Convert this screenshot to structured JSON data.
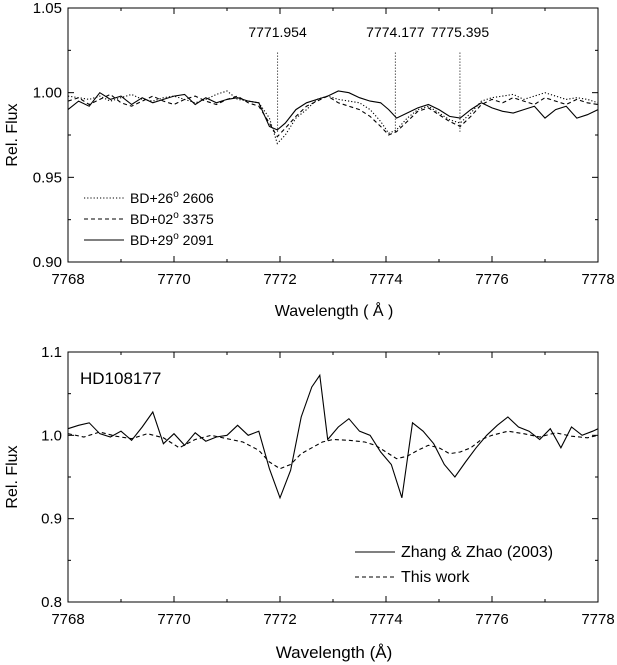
{
  "chart_data": [
    {
      "type": "line",
      "xlabel": "Wavelength ( Å )",
      "ylabel": "Rel. Flux",
      "xlim": [
        7768,
        7778
      ],
      "ylim": [
        0.9,
        1.05
      ],
      "xticks": [
        7768,
        7770,
        7772,
        7774,
        7776,
        7778
      ],
      "yticks": [
        0.9,
        0.95,
        1.0,
        1.05
      ],
      "tick_labels_y": [
        "0.90",
        "0.95",
        "1.00",
        "1.05"
      ],
      "grid": false,
      "legend_position": "bottom-left",
      "annotations": [
        {
          "x": 7771.954,
          "label": "7771.954"
        },
        {
          "x": 7774.177,
          "label": "7774.177"
        },
        {
          "x": 7775.395,
          "label": "7775.395"
        }
      ],
      "line_marker_range": [
        0.977,
        1.024
      ],
      "series": [
        {
          "legend": "BD+26",
          "legend_sup": "o",
          "legend_tail": " 2606",
          "style": "dotted",
          "x": [
            7768.0,
            7768.2,
            7768.4,
            7768.6,
            7768.8,
            7769.0,
            7769.2,
            7769.4,
            7769.6,
            7769.8,
            7770.0,
            7770.2,
            7770.4,
            7770.6,
            7770.8,
            7771.0,
            7771.2,
            7771.4,
            7771.6,
            7771.8,
            7771.95,
            7772.1,
            7772.3,
            7772.5,
            7772.7,
            7772.9,
            7773.1,
            7773.3,
            7773.5,
            7773.7,
            7773.9,
            7774.05,
            7774.2,
            7774.4,
            7774.6,
            7774.8,
            7775.0,
            7775.2,
            7775.4,
            7775.6,
            7775.8,
            7776.0,
            7776.2,
            7776.4,
            7776.6,
            7776.8,
            7777.0,
            7777.2,
            7777.4,
            7777.6,
            7777.8,
            7778.0
          ],
          "values": [
            0.998,
            0.997,
            0.996,
            0.998,
            0.995,
            0.997,
            0.999,
            0.996,
            0.995,
            0.997,
            0.998,
            0.996,
            0.994,
            0.996,
            0.999,
            1.001,
            0.996,
            0.995,
            0.994,
            0.985,
            0.97,
            0.975,
            0.985,
            0.99,
            0.996,
            0.998,
            0.996,
            0.995,
            0.994,
            0.99,
            0.983,
            0.976,
            0.978,
            0.985,
            0.99,
            0.992,
            0.988,
            0.984,
            0.982,
            0.988,
            0.995,
            0.997,
            0.998,
            0.999,
            0.996,
            0.998,
            1.0,
            0.998,
            0.996,
            0.997,
            0.996,
            0.994
          ]
        },
        {
          "legend": "BD+02",
          "legend_sup": "o",
          "legend_tail": " 3375",
          "style": "dashed",
          "x": [
            7768.0,
            7768.2,
            7768.4,
            7768.6,
            7768.8,
            7769.0,
            7769.2,
            7769.4,
            7769.6,
            7769.8,
            7770.0,
            7770.2,
            7770.4,
            7770.6,
            7770.8,
            7771.0,
            7771.2,
            7771.4,
            7771.6,
            7771.8,
            7771.95,
            7772.1,
            7772.3,
            7772.5,
            7772.7,
            7772.9,
            7773.1,
            7773.3,
            7773.5,
            7773.7,
            7773.9,
            7774.05,
            7774.2,
            7774.4,
            7774.6,
            7774.8,
            7775.0,
            7775.2,
            7775.4,
            7775.6,
            7775.8,
            7776.0,
            7776.2,
            7776.4,
            7776.6,
            7776.8,
            7777.0,
            7777.2,
            7777.4,
            7777.6,
            7777.8,
            7778.0
          ],
          "values": [
            0.995,
            0.997,
            0.993,
            0.996,
            0.999,
            0.994,
            0.992,
            0.995,
            0.998,
            0.995,
            0.993,
            0.996,
            0.998,
            0.995,
            0.993,
            0.996,
            0.998,
            0.994,
            0.992,
            0.982,
            0.974,
            0.979,
            0.986,
            0.992,
            0.995,
            0.998,
            0.994,
            0.992,
            0.99,
            0.986,
            0.98,
            0.975,
            0.977,
            0.983,
            0.989,
            0.991,
            0.987,
            0.983,
            0.98,
            0.986,
            0.993,
            0.996,
            0.994,
            0.997,
            0.995,
            0.993,
            0.997,
            0.995,
            0.993,
            0.996,
            0.994,
            0.993
          ]
        },
        {
          "legend": "BD+29",
          "legend_sup": "o",
          "legend_tail": " 2091",
          "style": "solid",
          "x": [
            7768.0,
            7768.2,
            7768.4,
            7768.6,
            7768.8,
            7769.0,
            7769.2,
            7769.4,
            7769.6,
            7769.8,
            7770.0,
            7770.2,
            7770.4,
            7770.6,
            7770.8,
            7771.0,
            7771.2,
            7771.4,
            7771.6,
            7771.8,
            7771.95,
            7772.1,
            7772.3,
            7772.5,
            7772.7,
            7772.9,
            7773.1,
            7773.3,
            7773.5,
            7773.7,
            7773.9,
            7774.05,
            7774.2,
            7774.4,
            7774.6,
            7774.8,
            7775.0,
            7775.2,
            7775.4,
            7775.6,
            7775.8,
            7776.0,
            7776.2,
            7776.4,
            7776.6,
            7776.8,
            7777.0,
            7777.2,
            7777.4,
            7777.6,
            7777.8,
            7778.0
          ],
          "values": [
            0.99,
            0.995,
            0.992,
            1.0,
            0.996,
            0.998,
            0.993,
            0.997,
            0.994,
            0.996,
            0.998,
            0.999,
            0.993,
            0.997,
            0.994,
            0.996,
            0.997,
            0.995,
            0.994,
            0.98,
            0.978,
            0.982,
            0.99,
            0.994,
            0.996,
            0.998,
            1.001,
            1.0,
            0.997,
            0.995,
            0.994,
            0.99,
            0.985,
            0.988,
            0.991,
            0.993,
            0.99,
            0.986,
            0.985,
            0.99,
            0.994,
            0.991,
            0.989,
            0.988,
            0.99,
            0.992,
            0.985,
            0.99,
            0.992,
            0.985,
            0.987,
            0.99
          ]
        }
      ]
    },
    {
      "type": "line",
      "title": "HD108177",
      "xlabel": "Wavelength (Å)",
      "ylabel": "Rel. Flux",
      "xlim": [
        7768,
        7778
      ],
      "ylim": [
        0.8,
        1.1
      ],
      "xticks": [
        7768,
        7770,
        7772,
        7774,
        7776,
        7778
      ],
      "yticks": [
        0.8,
        0.9,
        1.0,
        1.1
      ],
      "tick_labels_y": [
        "0.8",
        "0.9",
        "1.0",
        "1.1"
      ],
      "grid": false,
      "legend_position": "bottom-right",
      "series": [
        {
          "legend": "Zhang & Zhao (2003)",
          "style": "solid",
          "x": [
            7768.0,
            7768.2,
            7768.4,
            7768.6,
            7768.8,
            7769.0,
            7769.2,
            7769.4,
            7769.6,
            7769.8,
            7770.0,
            7770.2,
            7770.4,
            7770.6,
            7770.8,
            7771.0,
            7771.2,
            7771.4,
            7771.6,
            7771.8,
            7772.0,
            7772.2,
            7772.4,
            7772.6,
            7772.75,
            7772.9,
            7773.1,
            7773.3,
            7773.5,
            7773.7,
            7773.9,
            7774.1,
            7774.3,
            7774.5,
            7774.7,
            7774.9,
            7775.1,
            7775.3,
            7775.5,
            7775.7,
            7775.9,
            7776.1,
            7776.3,
            7776.5,
            7776.7,
            7776.9,
            7777.1,
            7777.3,
            7777.5,
            7777.7,
            7777.9,
            7778.0
          ],
          "values": [
            1.008,
            1.012,
            1.015,
            1.002,
            0.998,
            1.005,
            0.994,
            1.01,
            1.028,
            0.99,
            1.002,
            0.988,
            1.003,
            0.993,
            0.998,
            1.0,
            1.012,
            1.0,
            1.005,
            0.96,
            0.925,
            0.958,
            1.022,
            1.058,
            1.072,
            0.995,
            1.01,
            1.02,
            1.005,
            1.0,
            0.98,
            0.965,
            0.925,
            1.015,
            1.005,
            0.99,
            0.965,
            0.95,
            0.968,
            0.985,
            1.0,
            1.012,
            1.022,
            1.01,
            1.005,
            0.995,
            1.008,
            0.985,
            1.01,
            1.0,
            1.005,
            1.008
          ]
        },
        {
          "legend": "This work",
          "style": "dashed",
          "x": [
            7768.0,
            7768.3,
            7768.6,
            7768.9,
            7769.2,
            7769.5,
            7769.8,
            7770.1,
            7770.4,
            7770.7,
            7771.0,
            7771.3,
            7771.6,
            7771.8,
            7772.0,
            7772.2,
            7772.4,
            7772.6,
            7772.8,
            7773.0,
            7773.3,
            7773.6,
            7773.8,
            7774.0,
            7774.2,
            7774.4,
            7774.6,
            7774.8,
            7775.0,
            7775.2,
            7775.4,
            7775.6,
            7775.8,
            7776.0,
            7776.3,
            7776.6,
            7776.9,
            7777.2,
            7777.5,
            7777.8,
            7778.0
          ],
          "values": [
            1.002,
            0.998,
            1.004,
            0.999,
            0.996,
            1.002,
            0.997,
            0.985,
            0.995,
            1.0,
            0.996,
            0.992,
            0.982,
            0.968,
            0.96,
            0.965,
            0.978,
            0.985,
            0.992,
            0.995,
            0.994,
            0.992,
            0.988,
            0.98,
            0.972,
            0.975,
            0.982,
            0.988,
            0.985,
            0.978,
            0.98,
            0.985,
            0.995,
            1.0,
            1.005,
            1.002,
            0.998,
            1.003,
            0.999,
            0.997,
            1.0
          ]
        }
      ]
    }
  ]
}
